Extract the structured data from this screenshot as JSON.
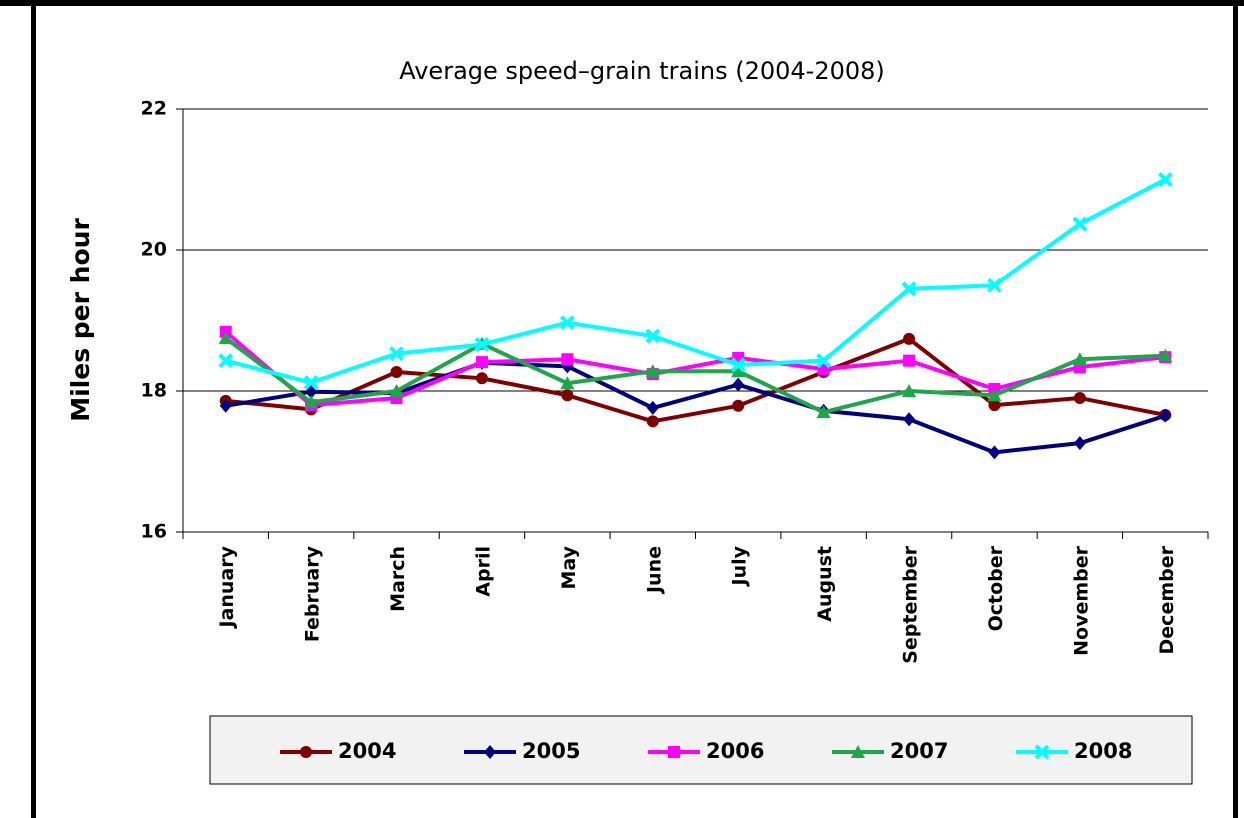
{
  "chart_data": {
    "type": "line",
    "title": "Average speed–grain trains (2004-2008)",
    "y_label": "Miles per hour",
    "categories": [
      "January",
      "February",
      "March",
      "April",
      "May",
      "June",
      "July",
      "August",
      "September",
      "October",
      "November",
      "December"
    ],
    "series": [
      {
        "name": "2004",
        "color": "#800000",
        "marker": "circle",
        "values": [
          17.86,
          17.74,
          18.27,
          18.18,
          17.94,
          17.57,
          17.79,
          18.27,
          18.74,
          17.8,
          17.9,
          17.66
        ]
      },
      {
        "name": "2005",
        "color": "#000080",
        "marker": "diamond",
        "values": [
          17.79,
          17.99,
          17.97,
          18.4,
          18.35,
          17.76,
          18.09,
          17.72,
          17.6,
          17.13,
          17.26,
          17.65
        ]
      },
      {
        "name": "2006",
        "color": "#ff00ff",
        "marker": "square",
        "values": [
          18.84,
          17.8,
          17.9,
          18.41,
          18.45,
          18.24,
          18.47,
          18.31,
          18.43,
          18.03,
          18.34,
          18.48
        ]
      },
      {
        "name": "2007",
        "color": "#1fa64a",
        "marker": "triangle",
        "values": [
          18.75,
          17.84,
          18.0,
          18.67,
          18.11,
          18.28,
          18.28,
          17.7,
          18.0,
          17.94,
          18.45,
          18.5
        ]
      },
      {
        "name": "2008",
        "color": "#00ffff",
        "marker": "x",
        "values": [
          18.43,
          18.12,
          18.53,
          18.66,
          18.97,
          18.78,
          18.37,
          18.43,
          19.45,
          19.5,
          20.37,
          21.0
        ]
      }
    ],
    "ylim": [
      16,
      22
    ],
    "yticks": [
      16,
      18,
      20,
      22
    ],
    "grid": true,
    "legend": "bottom"
  }
}
